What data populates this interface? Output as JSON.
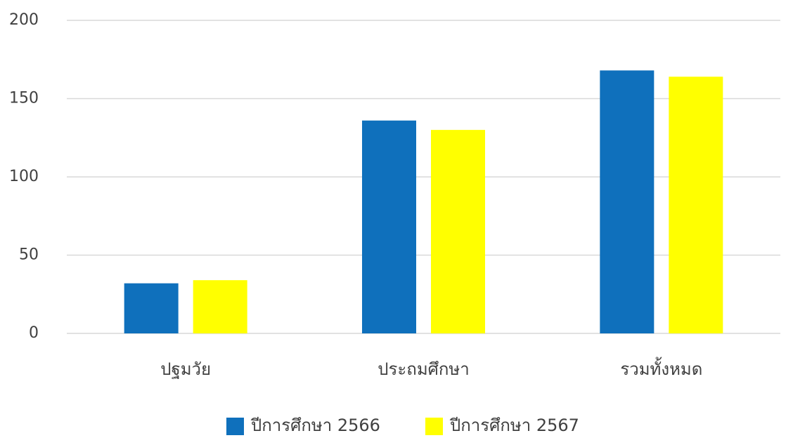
{
  "chart_data": {
    "type": "bar",
    "categories": [
      "ปฐมวัย",
      "ประถมศึกษา",
      "รวมทั้งหมด"
    ],
    "series": [
      {
        "name": "ปีการศึกษา 2566",
        "color": "#0f70bc",
        "values": [
          32,
          136,
          168
        ]
      },
      {
        "name": "ปีการศึกษา 2567",
        "color": "#ffff00",
        "values": [
          34,
          130,
          164
        ]
      }
    ],
    "ylim": [
      0,
      200
    ],
    "yticks": [
      0,
      50,
      100,
      150,
      200
    ],
    "grid": true,
    "legend": "bottom"
  }
}
